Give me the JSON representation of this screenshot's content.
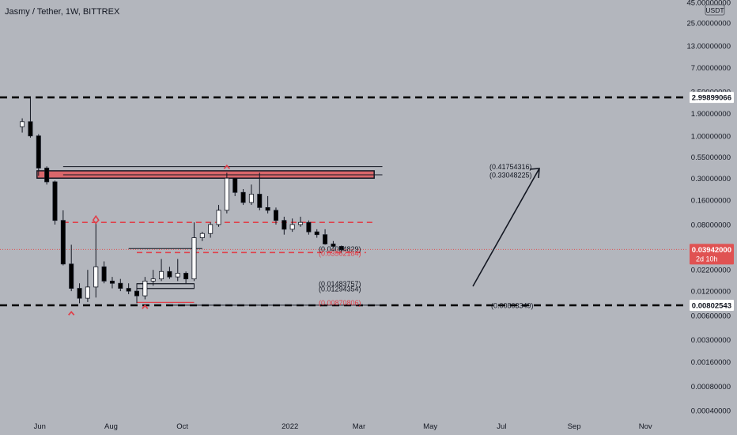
{
  "header": {
    "symbol_title": "Jasmy / Tether, 1W, BITTREX"
  },
  "price_axis": {
    "currency_badge": "USDT",
    "labels": [
      "45.00000000",
      "25.00000000",
      "13.00000000",
      "7.00000000",
      "3.50000000",
      "1.90000000",
      "1.00000000",
      "0.55000000",
      "0.30000000",
      "0.16000000",
      "0.08000000",
      "0.04200000",
      "0.02200000",
      "0.01200000",
      "0.00600000",
      "0.00300000",
      "0.00160000",
      "0.00080000",
      "0.00040000"
    ],
    "line_2_value": "2.99899066",
    "line_1_value": "0.00802543",
    "current_price": "0.03942000",
    "countdown": "2d 10h"
  },
  "time_axis": {
    "labels": [
      "Jun",
      "Aug",
      "Oct",
      "2022",
      "Mar",
      "May",
      "Jul",
      "Sep",
      "Nov"
    ]
  },
  "chart_data": {
    "type": "candlestick",
    "title": "Jasmy / Tether, 1W, BITTREX",
    "interval": "1W",
    "y_scale": "log",
    "ylim": [
      0.00035,
      48
    ],
    "x_range": [
      "2021-04-28",
      "2022-12-06"
    ],
    "candles": [
      {
        "t": "2021-05-17",
        "o": 1.3,
        "h": 1.65,
        "l": 1.1,
        "c": 1.5
      },
      {
        "t": "2021-05-24",
        "o": 1.5,
        "h": 2.99,
        "l": 0.95,
        "c": 1.0
      },
      {
        "t": "2021-05-31",
        "o": 1.0,
        "h": 1.05,
        "l": 0.32,
        "c": 0.4
      },
      {
        "t": "2021-06-07",
        "o": 0.4,
        "h": 0.42,
        "l": 0.25,
        "c": 0.27
      },
      {
        "t": "2021-06-14",
        "o": 0.27,
        "h": 0.28,
        "l": 0.08,
        "c": 0.09
      },
      {
        "t": "2021-06-21",
        "o": 0.09,
        "h": 0.12,
        "l": 0.025,
        "c": 0.026
      },
      {
        "t": "2021-06-28",
        "o": 0.026,
        "h": 0.045,
        "l": 0.012,
        "c": 0.013
      },
      {
        "t": "2021-07-05",
        "o": 0.013,
        "h": 0.015,
        "l": 0.0085,
        "c": 0.0098
      },
      {
        "t": "2021-07-12",
        "o": 0.0098,
        "h": 0.022,
        "l": 0.0088,
        "c": 0.0135
      },
      {
        "t": "2021-07-19",
        "o": 0.0135,
        "h": 0.085,
        "l": 0.01,
        "c": 0.024
      },
      {
        "t": "2021-07-26",
        "o": 0.024,
        "h": 0.028,
        "l": 0.015,
        "c": 0.016
      },
      {
        "t": "2021-08-02",
        "o": 0.016,
        "h": 0.018,
        "l": 0.013,
        "c": 0.015
      },
      {
        "t": "2021-08-09",
        "o": 0.015,
        "h": 0.017,
        "l": 0.012,
        "c": 0.013
      },
      {
        "t": "2021-08-16",
        "o": 0.013,
        "h": 0.015,
        "l": 0.011,
        "c": 0.012
      },
      {
        "t": "2021-08-23",
        "o": 0.012,
        "h": 0.013,
        "l": 0.0085,
        "c": 0.0105
      },
      {
        "t": "2021-08-30",
        "o": 0.0105,
        "h": 0.018,
        "l": 0.0095,
        "c": 0.016
      },
      {
        "t": "2021-09-06",
        "o": 0.016,
        "h": 0.022,
        "l": 0.014,
        "c": 0.017
      },
      {
        "t": "2021-09-13",
        "o": 0.017,
        "h": 0.03,
        "l": 0.016,
        "c": 0.021
      },
      {
        "t": "2021-09-20",
        "o": 0.021,
        "h": 0.024,
        "l": 0.017,
        "c": 0.018
      },
      {
        "t": "2021-09-27",
        "o": 0.018,
        "h": 0.03,
        "l": 0.016,
        "c": 0.02
      },
      {
        "t": "2021-10-04",
        "o": 0.02,
        "h": 0.021,
        "l": 0.015,
        "c": 0.017
      },
      {
        "t": "2021-10-11",
        "o": 0.017,
        "h": 0.085,
        "l": 0.016,
        "c": 0.055
      },
      {
        "t": "2021-10-18",
        "o": 0.055,
        "h": 0.065,
        "l": 0.05,
        "c": 0.062
      },
      {
        "t": "2021-10-25",
        "o": 0.062,
        "h": 0.085,
        "l": 0.055,
        "c": 0.08
      },
      {
        "t": "2021-11-01",
        "o": 0.08,
        "h": 0.14,
        "l": 0.075,
        "c": 0.12
      },
      {
        "t": "2021-11-08",
        "o": 0.12,
        "h": 0.35,
        "l": 0.11,
        "c": 0.3
      },
      {
        "t": "2021-11-15",
        "o": 0.3,
        "h": 0.3,
        "l": 0.18,
        "c": 0.2
      },
      {
        "t": "2021-11-22",
        "o": 0.2,
        "h": 0.22,
        "l": 0.14,
        "c": 0.15
      },
      {
        "t": "2021-11-29",
        "o": 0.15,
        "h": 0.25,
        "l": 0.14,
        "c": 0.19
      },
      {
        "t": "2021-12-06",
        "o": 0.19,
        "h": 0.35,
        "l": 0.12,
        "c": 0.13
      },
      {
        "t": "2021-12-13",
        "o": 0.13,
        "h": 0.18,
        "l": 0.11,
        "c": 0.12
      },
      {
        "t": "2021-12-20",
        "o": 0.12,
        "h": 0.13,
        "l": 0.08,
        "c": 0.09
      },
      {
        "t": "2021-12-27",
        "o": 0.09,
        "h": 0.1,
        "l": 0.06,
        "c": 0.07
      },
      {
        "t": "2022-01-03",
        "o": 0.07,
        "h": 0.095,
        "l": 0.065,
        "c": 0.08
      },
      {
        "t": "2022-01-10",
        "o": 0.08,
        "h": 0.1,
        "l": 0.075,
        "c": 0.085
      },
      {
        "t": "2022-01-17",
        "o": 0.085,
        "h": 0.09,
        "l": 0.06,
        "c": 0.065
      },
      {
        "t": "2022-01-24",
        "o": 0.065,
        "h": 0.07,
        "l": 0.055,
        "c": 0.06
      },
      {
        "t": "2022-01-31",
        "o": 0.06,
        "h": 0.07,
        "l": 0.045,
        "c": 0.046
      },
      {
        "t": "2022-02-07",
        "o": 0.046,
        "h": 0.05,
        "l": 0.042,
        "c": 0.043
      },
      {
        "t": "2022-02-14",
        "o": 0.043,
        "h": 0.044,
        "l": 0.036,
        "c": 0.039
      }
    ],
    "horizontal_lines": [
      {
        "value": 2.99899066,
        "style": "dashed",
        "color": "#000000",
        "label": "2.99899066"
      },
      {
        "value": 0.00802543,
        "style": "dashed",
        "color": "#000000",
        "label": "0.00802543"
      },
      {
        "value": 0.03942,
        "style": "dotted",
        "color": "#e05252",
        "label": "0.03942000"
      }
    ],
    "annotations": [
      {
        "text": "(0.41754316)",
        "value": 0.41754316
      },
      {
        "text": "(0.33048225)",
        "value": 0.33048225
      },
      {
        "text": "(0.04034829)",
        "value": 0.04034829
      },
      {
        "text": "(0.03562184)",
        "value": 0.03562184
      },
      {
        "text": "(0.01483757)",
        "value": 0.01483757
      },
      {
        "text": "(0.01294354)",
        "value": 0.01294354
      },
      {
        "text": "(0.00870806)",
        "value": 0.00870806
      },
      {
        "text": "(0.00803349)",
        "value": 0.00803349
      }
    ],
    "resistance_zone": {
      "from": 0.3,
      "to": 0.37,
      "color": "#e05252"
    },
    "red_dashed_levels": [
      0.085,
      0.036
    ],
    "colors": {
      "bull": "#ffffff",
      "bear": "#000000",
      "marker": "#e0404a",
      "background": "#b3b6bd",
      "axis_bg": "#b3b6bd"
    }
  }
}
